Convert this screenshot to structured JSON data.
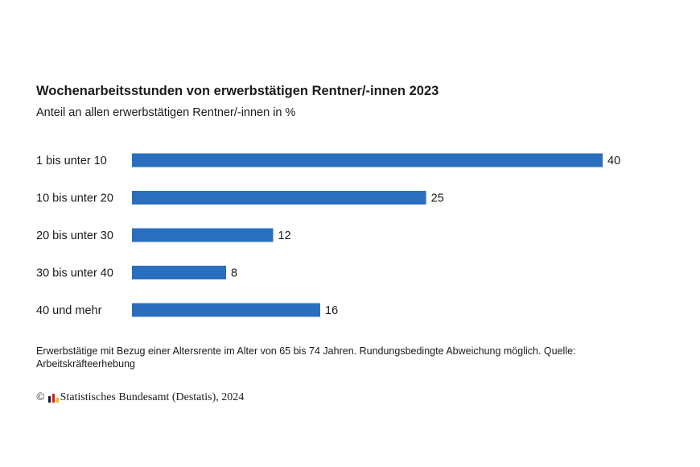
{
  "header": {
    "title": "Wochenarbeitsstunden von erwerbstätigen Rentner/-innen 2023",
    "subtitle": "Anteil an allen erwerbstätigen Rentner/-innen in %"
  },
  "chart_data": {
    "type": "bar",
    "orientation": "horizontal",
    "categories": [
      "1 bis unter 10",
      "10 bis unter 20",
      "20 bis unter 30",
      "30 bis unter 40",
      "40 und mehr"
    ],
    "values": [
      40,
      25,
      12,
      8,
      16
    ],
    "xlim": [
      0,
      40
    ],
    "bar_color": "#2a6ebe",
    "grid": false,
    "legend": "none"
  },
  "footer": {
    "note": "Erwerbstätige mit Bezug einer Altersrente im Alter von 65 bis 74 Jahren. Rundungsbedingte Abweichung möglich. Quelle: Arbeitskräfteerhebung",
    "copyright_symbol": "©",
    "source": "Statistisches Bundesamt (Destatis), 2024"
  },
  "colors": {
    "logo_black": "#1a1a1a",
    "logo_red": "#d61e1e",
    "logo_gold": "#f0b400"
  }
}
